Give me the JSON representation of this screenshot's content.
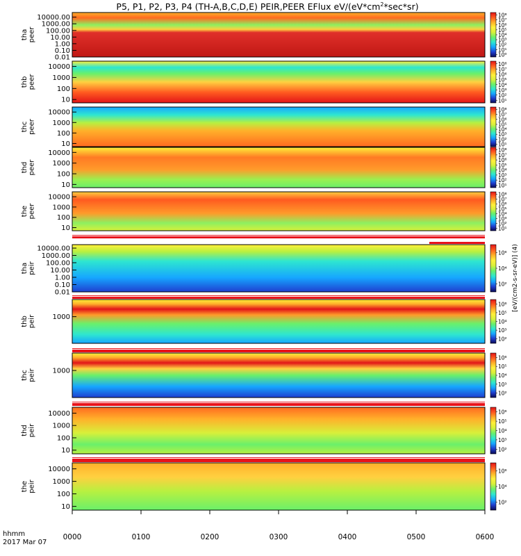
{
  "title": "P5, P1, P2, P3, P4 (TH-A,B,C,D,E) PEIR,PEER EFlux eV/(eV*cm",
  "title_sup": "2",
  "title_tail": "*sec*sr)",
  "colors": {
    "spectrogram_ramp": [
      "#0a0a55",
      "#1f3fd0",
      "#16a6ff",
      "#2ee6d0",
      "#6af06a",
      "#d8f03a",
      "#fff03a",
      "#ffb02a",
      "#ff5a20",
      "#e21418"
    ],
    "mode_bar": "#e8121a",
    "mode_gap": "#ffffff",
    "background": "#ffffff",
    "axis": "#000000"
  },
  "time_axis": {
    "label_line1": "hhmm",
    "label_line2": "2017 Mar 07",
    "ticks": [
      "0000",
      "0100",
      "0200",
      "0300",
      "0400",
      "0500",
      "0600"
    ]
  },
  "colorbar_unit": "[eV/(cm2-s-sr-eV)] (4)",
  "chart_data": [
    {
      "type": "heatmap",
      "probe": "tha",
      "species": "peer",
      "ylabel_1": "tha",
      "ylabel_2": "peer",
      "yscale": "log",
      "ylim": [
        0.01,
        50000
      ],
      "yticks": [
        "10000.00",
        "1000.00",
        "100.00",
        "10.00",
        "1.00",
        "0.10",
        "0.01"
      ],
      "cbticks": [
        "10⁸",
        "10⁷",
        "10⁶",
        "10⁵",
        "10⁴",
        "10³",
        "10²",
        "10¹",
        "10⁰"
      ],
      "xlim_hours": [
        0,
        6
      ]
    },
    {
      "type": "heatmap",
      "probe": "thb",
      "species": "peer",
      "ylabel_1": "thb",
      "ylabel_2": "peer",
      "yscale": "log",
      "ylim": [
        5,
        30000
      ],
      "yticks": [
        "10000",
        "1000",
        "100",
        "10"
      ],
      "cbticks": [
        "10⁸",
        "10⁷",
        "10⁶",
        "10⁵",
        "10⁴",
        "10³",
        "10²",
        "10¹"
      ],
      "xlim_hours": [
        0,
        6
      ]
    },
    {
      "type": "heatmap",
      "probe": "thc",
      "species": "peer",
      "ylabel_1": "thc",
      "ylabel_2": "peer",
      "yscale": "log",
      "ylim": [
        5,
        30000
      ],
      "yticks": [
        "10000",
        "1000",
        "100",
        "10"
      ],
      "cbticks": [
        "10⁸",
        "10⁷",
        "10⁶",
        "10⁵",
        "10⁴",
        "10³",
        "10²",
        "10¹"
      ],
      "xlim_hours": [
        0,
        6
      ]
    },
    {
      "type": "heatmap",
      "probe": "thd",
      "species": "peer",
      "ylabel_1": "thd",
      "ylabel_2": "peer",
      "yscale": "log",
      "ylim": [
        5,
        30000
      ],
      "yticks": [
        "10000",
        "1000",
        "100",
        "10"
      ],
      "cbticks": [
        "10⁸",
        "10⁷",
        "10⁶",
        "10⁵",
        "10⁴",
        "10³",
        "10²",
        "10¹"
      ],
      "xlim_hours": [
        0,
        6
      ]
    },
    {
      "type": "heatmap",
      "probe": "the",
      "species": "peer",
      "ylabel_1": "the",
      "ylabel_2": "peer",
      "yscale": "log",
      "ylim": [
        5,
        30000
      ],
      "yticks": [
        "10000",
        "1000",
        "100",
        "10"
      ],
      "cbticks": [
        "10⁸",
        "10⁷",
        "10⁶",
        "10⁵",
        "10⁴",
        "10³",
        "10²",
        "10¹"
      ],
      "xlim_hours": [
        0,
        6
      ]
    },
    {
      "type": "heatmap",
      "probe": "tha",
      "species": "peir",
      "ylabel_1": "tha",
      "ylabel_2": "peir",
      "yscale": "log",
      "ylim": [
        0.01,
        30000
      ],
      "yticks": [
        "10000.00",
        "1000.00",
        "100.00",
        "10.00",
        "1.00",
        "0.10",
        "0.01"
      ],
      "cbticks": [
        "10⁶",
        "10⁴",
        "10²"
      ],
      "xlim_hours": [
        0,
        6
      ]
    },
    {
      "type": "heatmap",
      "probe": "thb",
      "species": "peir",
      "ylabel_1": "thb",
      "ylabel_2": "peir",
      "yscale": "log",
      "ylim": [
        5,
        30000
      ],
      "yticks": [
        "1000"
      ],
      "cbticks": [
        "10⁶",
        "10⁵",
        "10⁴",
        "10³",
        "10²"
      ],
      "xlim_hours": [
        0,
        6
      ]
    },
    {
      "type": "heatmap",
      "probe": "thc",
      "species": "peir",
      "ylabel_1": "thc",
      "ylabel_2": "peir",
      "yscale": "log",
      "ylim": [
        5,
        30000
      ],
      "yticks": [
        "1000"
      ],
      "cbticks": [
        "10⁶",
        "10⁵",
        "10⁴",
        "10³",
        "10²"
      ],
      "xlim_hours": [
        0,
        6
      ]
    },
    {
      "type": "heatmap",
      "probe": "thd",
      "species": "peir",
      "ylabel_1": "thd",
      "ylabel_2": "peir",
      "yscale": "log",
      "ylim": [
        5,
        30000
      ],
      "yticks": [
        "10000",
        "1000",
        "100",
        "10"
      ],
      "cbticks": [
        "10⁶",
        "10⁵",
        "10⁴",
        "10³",
        "10²"
      ],
      "xlim_hours": [
        0,
        6
      ]
    },
    {
      "type": "heatmap",
      "probe": "the",
      "species": "peir",
      "ylabel_1": "the",
      "ylabel_2": "peir",
      "yscale": "log",
      "ylim": [
        5,
        30000
      ],
      "yticks": [
        "10000",
        "1000",
        "100",
        "10"
      ],
      "cbticks": [
        "10⁶",
        "10⁴",
        "10²"
      ],
      "xlim_hours": [
        0,
        6
      ]
    }
  ]
}
